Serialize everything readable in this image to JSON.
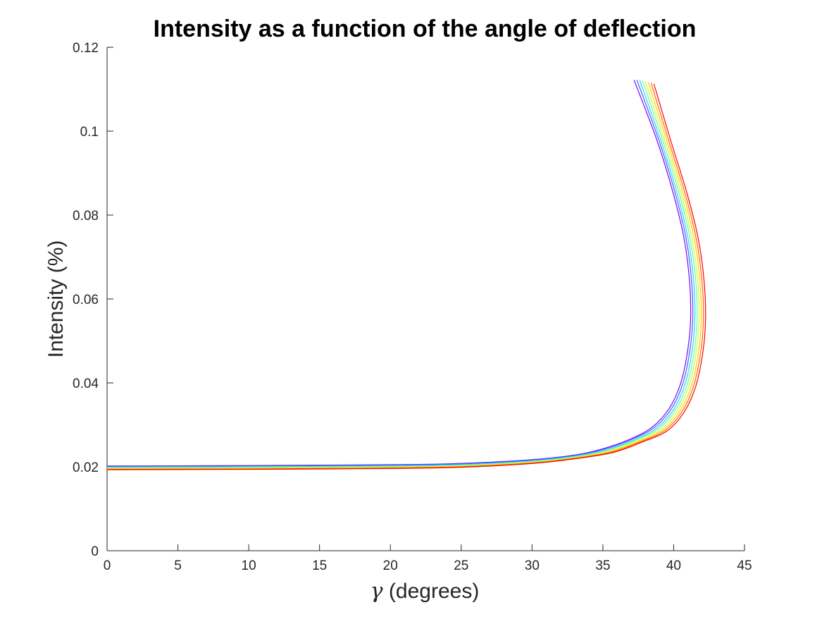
{
  "chart_data": {
    "type": "line",
    "title": "Intensity as a function of the angle of deflection",
    "xlabel_symbol": "γ",
    "xlabel_text": " (degrees)",
    "ylabel": "Intensity (%)",
    "xlim": [
      0,
      45
    ],
    "ylim": [
      0,
      0.12
    ],
    "xticks": [
      0,
      5,
      10,
      15,
      20,
      25,
      30,
      35,
      40,
      45
    ],
    "xtick_labels": [
      "0",
      "5",
      "10",
      "15",
      "20",
      "25",
      "30",
      "35",
      "40",
      "45"
    ],
    "yticks": [
      0,
      0.02,
      0.04,
      0.06,
      0.08,
      0.1,
      0.12
    ],
    "ytick_labels": [
      "0",
      "0.02",
      "0.04",
      "0.06",
      "0.08",
      "0.1",
      "0.12"
    ],
    "grid": false,
    "legend": "none",
    "series": [
      {
        "color": "#8000ff",
        "points": [
          [
            0,
            0.0202
          ],
          [
            10,
            0.0203
          ],
          [
            20,
            0.0205
          ],
          [
            25,
            0.0208
          ],
          [
            30,
            0.0217
          ],
          [
            33,
            0.0228
          ],
          [
            35,
            0.0243
          ],
          [
            37,
            0.0267
          ],
          [
            38.5,
            0.0295
          ],
          [
            39.7,
            0.034
          ],
          [
            40.5,
            0.04
          ],
          [
            41.0,
            0.048
          ],
          [
            41.2,
            0.056
          ],
          [
            41.1,
            0.065
          ],
          [
            40.7,
            0.075
          ],
          [
            39.9,
            0.086
          ],
          [
            38.8,
            0.098
          ],
          [
            37.2,
            0.1122
          ]
        ]
      },
      {
        "color": "#3366ff",
        "points": [
          [
            0,
            0.0201
          ],
          [
            10,
            0.0202
          ],
          [
            20,
            0.0204
          ],
          [
            25,
            0.0207
          ],
          [
            30,
            0.0216
          ],
          [
            33,
            0.0227
          ],
          [
            35.1,
            0.0242
          ],
          [
            37.1,
            0.0266
          ],
          [
            38.65,
            0.0294
          ],
          [
            39.85,
            0.0339
          ],
          [
            40.65,
            0.0399
          ],
          [
            41.15,
            0.0479
          ],
          [
            41.35,
            0.0559
          ],
          [
            41.25,
            0.0649
          ],
          [
            40.85,
            0.0749
          ],
          [
            40.05,
            0.0859
          ],
          [
            38.95,
            0.0979
          ],
          [
            37.4,
            0.1122
          ]
        ]
      },
      {
        "color": "#33ccff",
        "points": [
          [
            0,
            0.0199
          ],
          [
            10,
            0.02
          ],
          [
            20,
            0.0202
          ],
          [
            25,
            0.0205
          ],
          [
            30,
            0.0214
          ],
          [
            33,
            0.0225
          ],
          [
            35.2,
            0.024
          ],
          [
            37.2,
            0.0264
          ],
          [
            38.8,
            0.0292
          ],
          [
            40,
            0.0337
          ],
          [
            40.8,
            0.0397
          ],
          [
            41.3,
            0.0477
          ],
          [
            41.5,
            0.0557
          ],
          [
            41.4,
            0.0647
          ],
          [
            41,
            0.0747
          ],
          [
            40.2,
            0.0857
          ],
          [
            39.1,
            0.0977
          ],
          [
            37.6,
            0.1121
          ]
        ]
      },
      {
        "color": "#66ff99",
        "points": [
          [
            0,
            0.0198
          ],
          [
            10,
            0.0199
          ],
          [
            20,
            0.0201
          ],
          [
            25,
            0.0204
          ],
          [
            30,
            0.0213
          ],
          [
            33,
            0.0224
          ],
          [
            35.3,
            0.0239
          ],
          [
            37.3,
            0.0263
          ],
          [
            38.95,
            0.0291
          ],
          [
            40.15,
            0.0336
          ],
          [
            40.95,
            0.0396
          ],
          [
            41.45,
            0.0476
          ],
          [
            41.65,
            0.0556
          ],
          [
            41.55,
            0.0646
          ],
          [
            41.15,
            0.0746
          ],
          [
            40.35,
            0.0856
          ],
          [
            39.25,
            0.0976
          ],
          [
            37.8,
            0.112
          ]
        ]
      },
      {
        "color": "#ccff33",
        "points": [
          [
            0,
            0.0196
          ],
          [
            10,
            0.0197
          ],
          [
            20,
            0.0199
          ],
          [
            25,
            0.0202
          ],
          [
            30,
            0.0211
          ],
          [
            33,
            0.0222
          ],
          [
            35.4,
            0.0237
          ],
          [
            37.4,
            0.0261
          ],
          [
            39.1,
            0.0289
          ],
          [
            40.3,
            0.0334
          ],
          [
            41.1,
            0.0394
          ],
          [
            41.6,
            0.0474
          ],
          [
            41.8,
            0.0554
          ],
          [
            41.7,
            0.0644
          ],
          [
            41.3,
            0.0744
          ],
          [
            40.5,
            0.0854
          ],
          [
            39.4,
            0.0974
          ],
          [
            38,
            0.1119
          ]
        ]
      },
      {
        "color": "#ffcc00",
        "points": [
          [
            0,
            0.0195
          ],
          [
            10,
            0.0196
          ],
          [
            20,
            0.0198
          ],
          [
            25,
            0.0201
          ],
          [
            30,
            0.021
          ],
          [
            33,
            0.0221
          ],
          [
            35.5,
            0.0236
          ],
          [
            37.5,
            0.026
          ],
          [
            39.25,
            0.0288
          ],
          [
            40.45,
            0.0333
          ],
          [
            41.25,
            0.0393
          ],
          [
            41.75,
            0.0473
          ],
          [
            41.95,
            0.0553
          ],
          [
            41.85,
            0.0643
          ],
          [
            41.45,
            0.0743
          ],
          [
            40.65,
            0.0853
          ],
          [
            39.55,
            0.0973
          ],
          [
            38.2,
            0.1117
          ]
        ]
      },
      {
        "color": "#ff6600",
        "points": [
          [
            0,
            0.0194
          ],
          [
            10,
            0.0195
          ],
          [
            20,
            0.0197
          ],
          [
            25,
            0.02
          ],
          [
            30,
            0.0209
          ],
          [
            33,
            0.022
          ],
          [
            35.6,
            0.0235
          ],
          [
            37.6,
            0.0259
          ],
          [
            39.4,
            0.0287
          ],
          [
            40.6,
            0.0332
          ],
          [
            41.4,
            0.0392
          ],
          [
            41.9,
            0.0472
          ],
          [
            42.1,
            0.0552
          ],
          [
            42,
            0.0642
          ],
          [
            41.6,
            0.0742
          ],
          [
            40.8,
            0.0852
          ],
          [
            39.7,
            0.0972
          ],
          [
            38.4,
            0.1115
          ]
        ]
      },
      {
        "color": "#ff0000",
        "points": [
          [
            0,
            0.0193
          ],
          [
            10,
            0.0194
          ],
          [
            20,
            0.0196
          ],
          [
            25,
            0.0199
          ],
          [
            30,
            0.0208
          ],
          [
            33,
            0.0219
          ],
          [
            35.7,
            0.0234
          ],
          [
            37.7,
            0.0258
          ],
          [
            39.55,
            0.0286
          ],
          [
            40.75,
            0.0331
          ],
          [
            41.55,
            0.0391
          ],
          [
            42.05,
            0.0471
          ],
          [
            42.25,
            0.0551
          ],
          [
            42.15,
            0.0641
          ],
          [
            41.75,
            0.0741
          ],
          [
            40.95,
            0.0851
          ],
          [
            39.85,
            0.0971
          ],
          [
            38.6,
            0.1113
          ]
        ]
      }
    ]
  }
}
